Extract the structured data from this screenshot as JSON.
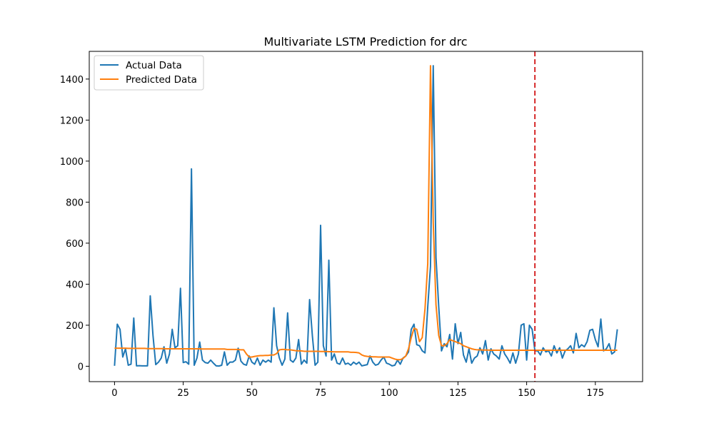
{
  "chart_data": {
    "type": "line",
    "title": "Multivariate LSTM Prediction for drc",
    "xlabel": "",
    "ylabel": "",
    "xlim": [
      -9.2,
      192.2
    ],
    "ylim": [
      -75,
      1535
    ],
    "xticks": [
      0,
      25,
      50,
      75,
      100,
      125,
      150,
      175
    ],
    "yticks": [
      0,
      200,
      400,
      600,
      800,
      1000,
      1200,
      1400
    ],
    "grid": false,
    "legend_position": "top-left",
    "vertical_line": {
      "x": 153,
      "color": "#d62728",
      "style": "dashed"
    },
    "series": [
      {
        "name": "Actual Data",
        "color": "#1f77b4",
        "values": [
          2,
          205,
          180,
          45,
          85,
          5,
          10,
          235,
          2,
          3,
          2,
          2,
          2,
          343,
          150,
          8,
          20,
          40,
          95,
          15,
          60,
          180,
          90,
          100,
          380,
          18,
          22,
          10,
          962,
          5,
          40,
          118,
          30,
          18,
          15,
          30,
          15,
          2,
          1,
          5,
          70,
          5,
          20,
          20,
          30,
          88,
          25,
          10,
          5,
          50,
          20,
          10,
          40,
          5,
          30,
          20,
          30,
          20,
          285,
          100,
          40,
          5,
          35,
          260,
          30,
          20,
          40,
          130,
          10,
          30,
          15,
          325,
          150,
          5,
          20,
          687,
          100,
          50,
          517,
          30,
          60,
          15,
          10,
          40,
          10,
          15,
          5,
          20,
          10,
          20,
          2,
          5,
          8,
          50,
          20,
          5,
          10,
          30,
          45,
          15,
          10,
          2,
          5,
          30,
          10,
          40,
          50,
          70,
          180,
          205,
          105,
          100,
          75,
          65,
          290,
          487,
          1465,
          530,
          290,
          75,
          110,
          95,
          155,
          35,
          207,
          110,
          165,
          55,
          20,
          85,
          15,
          40,
          50,
          90,
          60,
          125,
          30,
          85,
          60,
          50,
          35,
          100,
          60,
          40,
          15,
          65,
          15,
          60,
          200,
          207,
          30,
          200,
          180,
          75,
          75,
          55,
          90,
          70,
          75,
          50,
          100,
          65,
          90,
          40,
          75,
          85,
          100,
          65,
          160,
          90,
          105,
          95,
          120,
          175,
          180,
          130,
          95,
          230,
          75,
          85,
          110,
          60,
          70,
          180
        ]
      },
      {
        "name": "Predicted Data",
        "color": "#ff7f0e",
        "values": [
          88,
          88,
          88,
          88,
          88,
          87,
          87,
          87,
          87,
          87,
          87,
          87,
          86,
          86,
          86,
          86,
          86,
          86,
          86,
          85,
          85,
          85,
          85,
          85,
          85,
          85,
          85,
          85,
          85,
          85,
          85,
          85,
          84,
          84,
          84,
          84,
          84,
          84,
          84,
          84,
          84,
          82,
          82,
          82,
          82,
          82,
          80,
          80,
          60,
          45,
          45,
          48,
          50,
          52,
          52,
          53,
          53,
          55,
          55,
          62,
          80,
          82,
          82,
          80,
          80,
          78,
          76,
          75,
          75,
          73,
          73,
          73,
          73,
          73,
          73,
          72,
          72,
          72,
          71,
          71,
          70,
          70,
          70,
          70,
          70,
          70,
          68,
          68,
          67,
          65,
          55,
          50,
          48,
          47,
          46,
          46,
          45,
          45,
          45,
          45,
          45,
          40,
          35,
          32,
          32,
          38,
          50,
          85,
          140,
          185,
          180,
          120,
          140,
          280,
          500,
          1465,
          700,
          300,
          150,
          100,
          100,
          110,
          130,
          125,
          120,
          115,
          110,
          100,
          95,
          90,
          85,
          82,
          80,
          80,
          79,
          79,
          79,
          78,
          78,
          78,
          78,
          78,
          78,
          78,
          78,
          78,
          78,
          78,
          78,
          78,
          78,
          78,
          78,
          78,
          78,
          78,
          78,
          78,
          78,
          78,
          78,
          78,
          78,
          78,
          78,
          78,
          78,
          78,
          78,
          78,
          78,
          78,
          78,
          78,
          78,
          78,
          78,
          78,
          78,
          78,
          78,
          78,
          78,
          78
        ]
      }
    ]
  }
}
